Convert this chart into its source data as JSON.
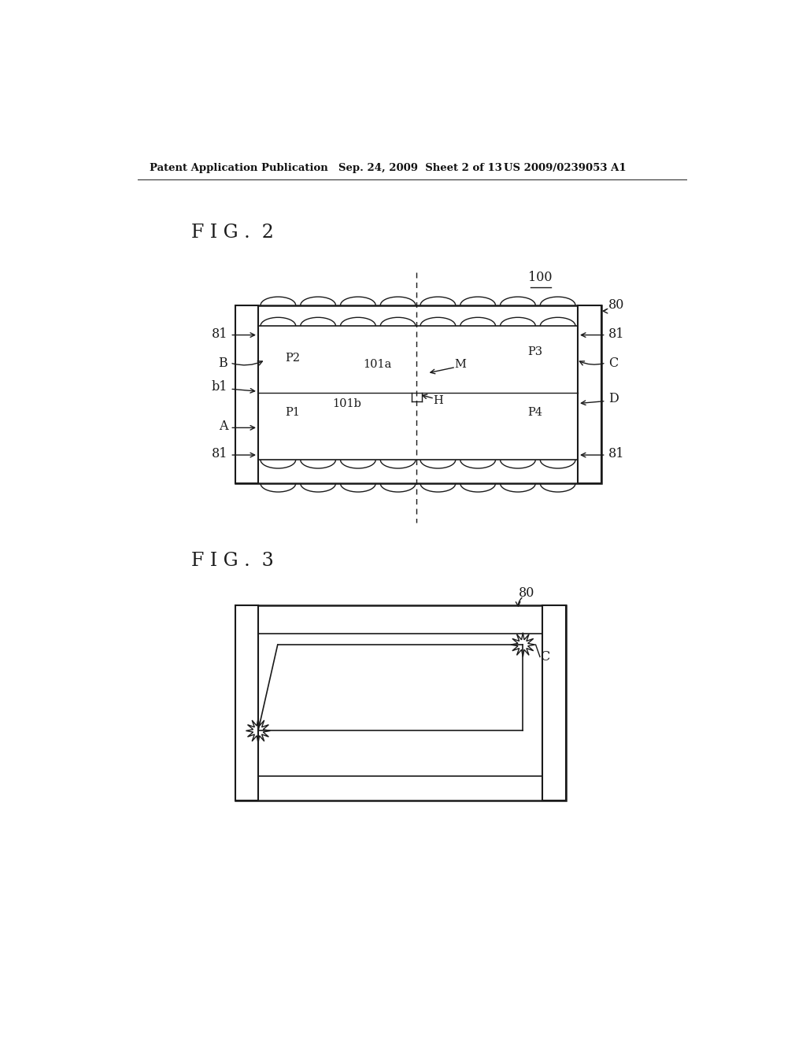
{
  "bg_color": "#ffffff",
  "header_left": "Patent Application Publication",
  "header_mid": "Sep. 24, 2009  Sheet 2 of 13",
  "header_right": "US 2009/0239053 A1",
  "fig2_label": "F I G .  2",
  "fig3_label": "F I G .  3"
}
